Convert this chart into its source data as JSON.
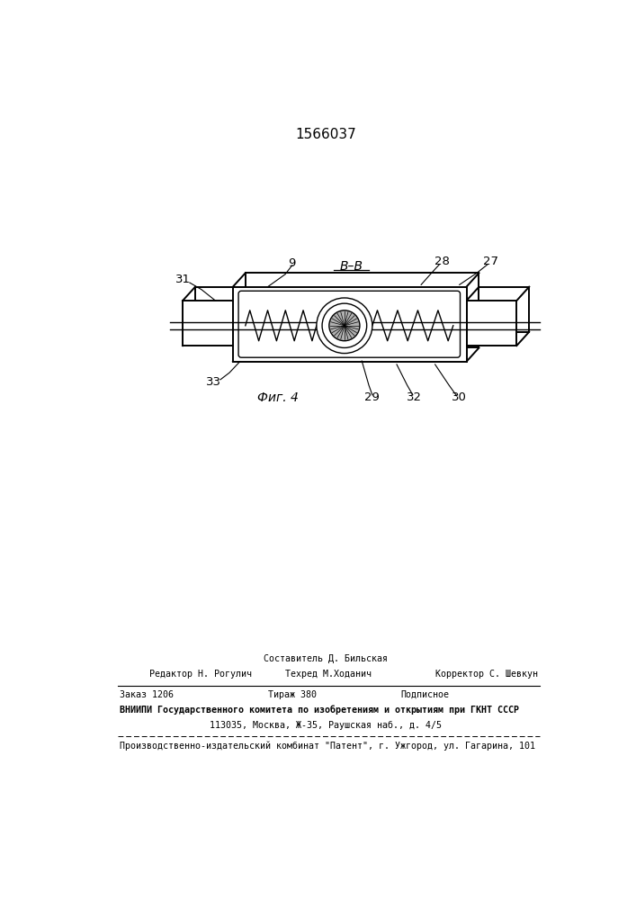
{
  "patent_number": "1566037",
  "fig_label": "Фиг. 4",
  "section_label": "В–В",
  "footer_line1_center": "Составитель Д. Бильская",
  "footer_line2_left": "Редактор Н. Рогулич",
  "footer_line2_center": "Техред М.Ходанич",
  "footer_line2_right": "Корректор С. Шевкун",
  "footer_line3_col1": "Заказ 1206",
  "footer_line3_col2": "Тираж 380",
  "footer_line3_col3": "Подписное",
  "footer_line4": "ВНИИПИ Государственного комитета по изобретениям и открытиям при ГКНТ СССР",
  "footer_line5": "113035, Москва, Ж-35, Раушская наб., д. 4/5",
  "footer_line6": "Производственно-издательский комбинат \"Патент\", г. Ужгород, ул. Гагарина, 101"
}
